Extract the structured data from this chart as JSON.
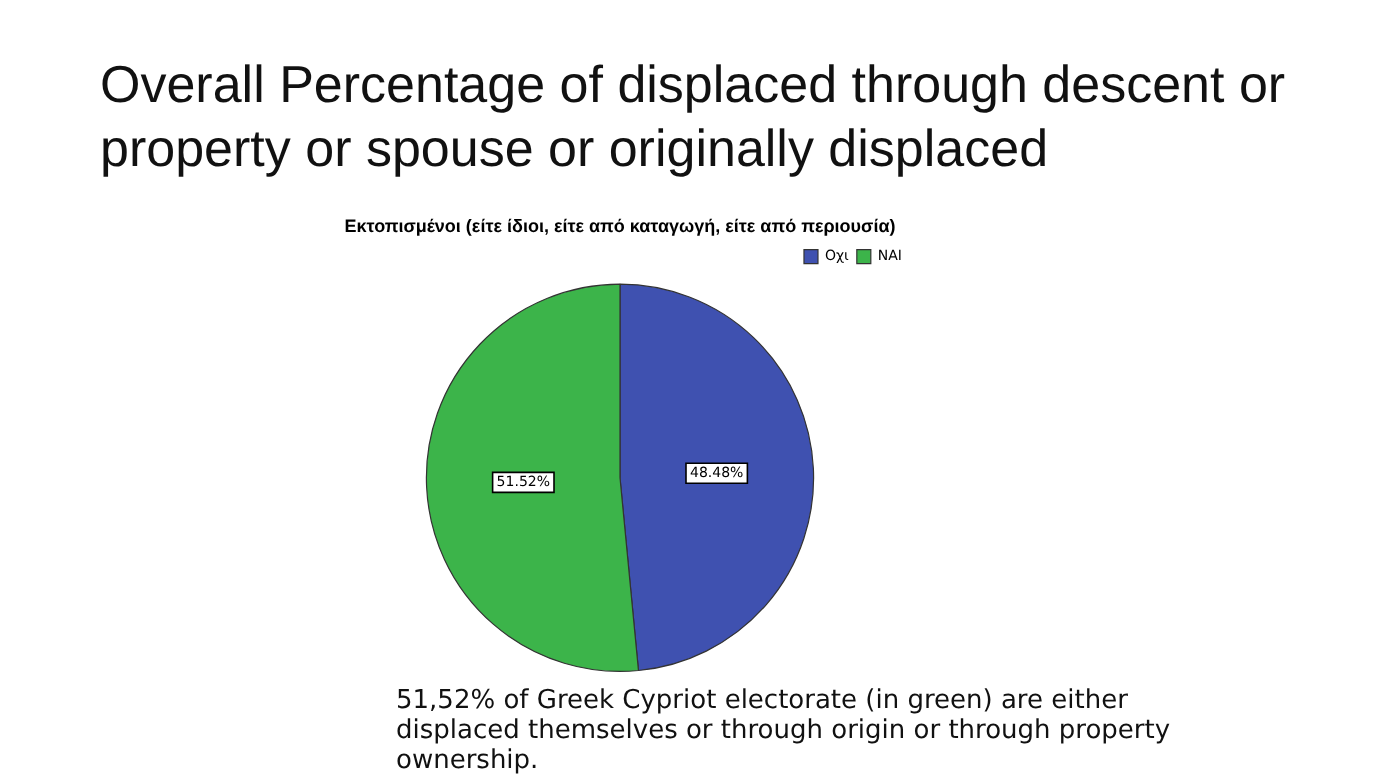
{
  "chart_data": {
    "type": "pie",
    "title": "Overall Percentage of displaced through descent or property or spouse or originally displaced",
    "subtitle": "Εκτοπισμένοι (είτε ίδιοι, είτε από καταγωγή, είτε από περιουσία)",
    "categories": [
      "Οχι",
      "ΝΑΙ"
    ],
    "values": [
      48.48,
      51.52
    ],
    "colors": [
      "#3f51b0",
      "#3cb44a"
    ],
    "value_labels": [
      "48.48%",
      "51.52%"
    ],
    "legend": "top right",
    "annotations": [
      "51,52% of Greek Cypriot electorate (in green) are either displaced themselves or through origin or through property ownership."
    ]
  }
}
